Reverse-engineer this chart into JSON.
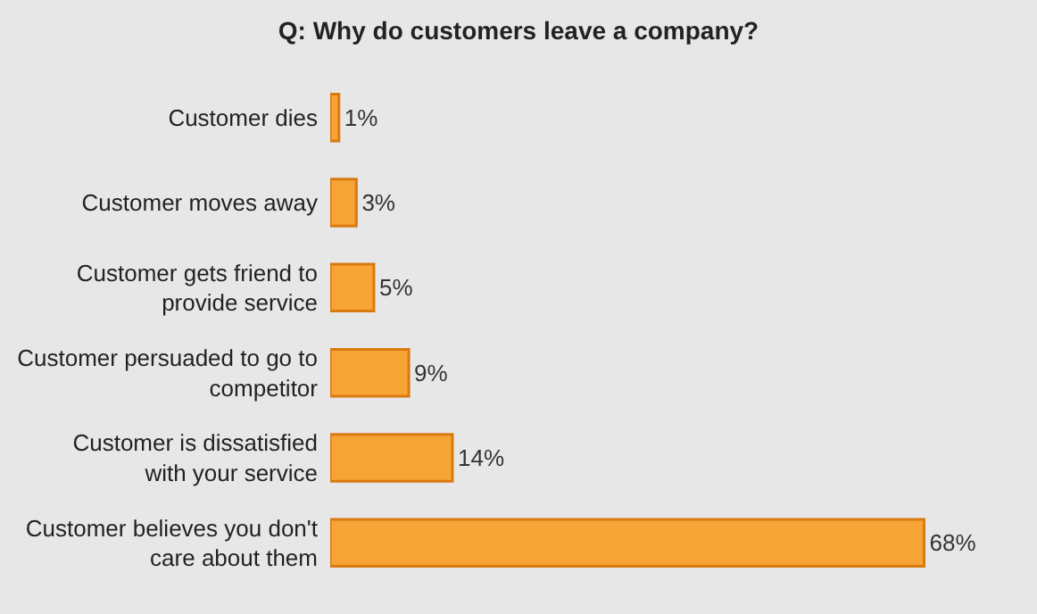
{
  "chart_data": {
    "type": "bar",
    "orientation": "horizontal",
    "title": "Q: Why do customers leave a company?",
    "categories": [
      "Customer dies",
      "Customer moves away",
      "Customer gets friend to provide service",
      "Customer persuaded to go to competitor",
      "Customer is dissatisfied with your service",
      "Customer believes you don't care about them"
    ],
    "values": [
      1,
      3,
      5,
      9,
      14,
      68
    ],
    "value_labels": [
      "1%",
      "3%",
      "5%",
      "9%",
      "14%",
      "68%"
    ],
    "color": "#f7a437",
    "grid": false,
    "legend": false
  }
}
